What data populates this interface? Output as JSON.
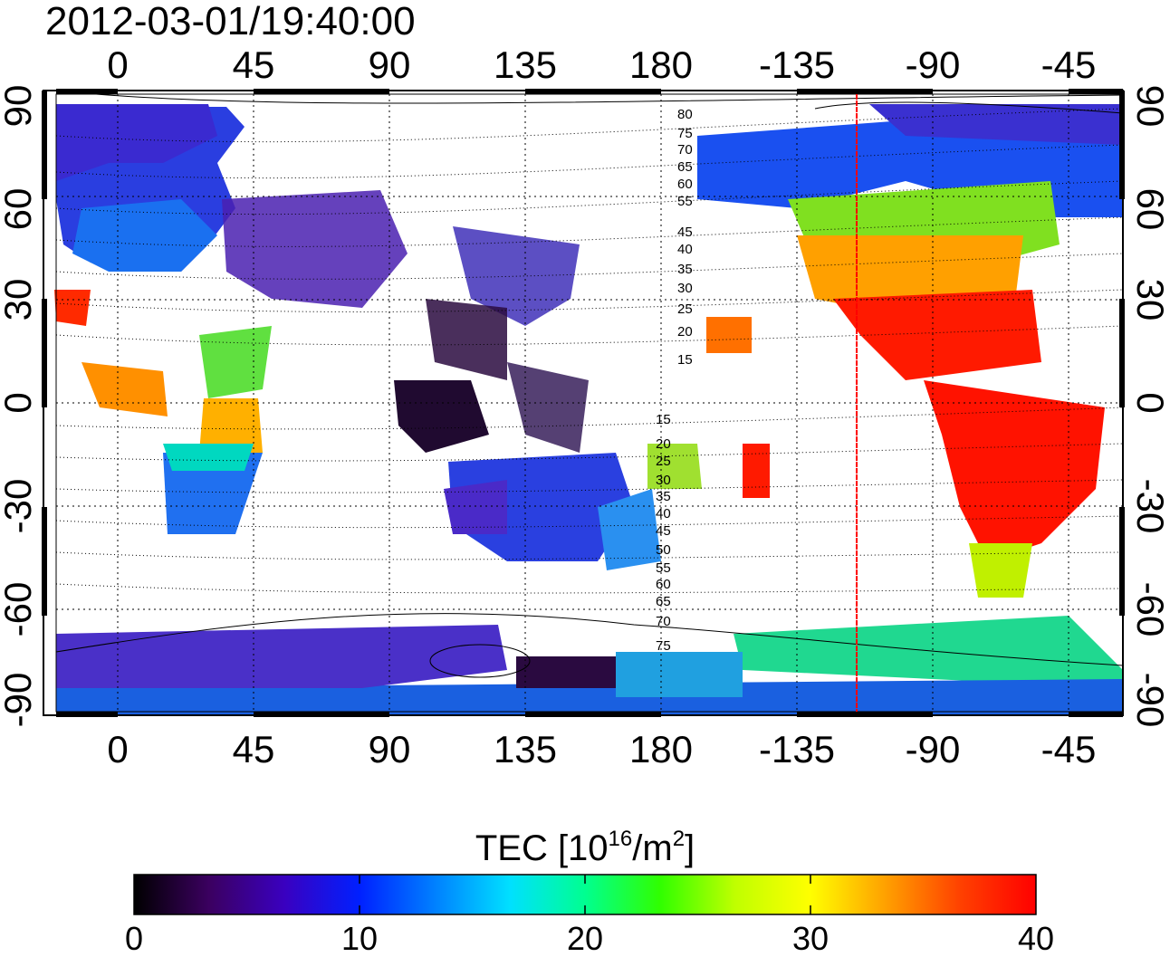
{
  "title": "2012-03-01/19:40:00",
  "map": {
    "lon_ticks": [
      "0",
      "45",
      "90",
      "135",
      "180",
      "-135",
      "-90",
      "-45"
    ],
    "lat_ticks": [
      "90",
      "60",
      "30",
      "0",
      "-30",
      "-60",
      "-90"
    ],
    "marked_longitude": -115,
    "marker_color": "#ff0000",
    "contour_labels_north": [
      "80",
      "75",
      "70",
      "65",
      "60",
      "55",
      "45",
      "40",
      "35",
      "30",
      "25",
      "20",
      "15"
    ],
    "contour_labels_south": [
      "15",
      "20",
      "25",
      "30",
      "35",
      "40",
      "45",
      "50",
      "55",
      "60",
      "65",
      "70",
      "75"
    ]
  },
  "colorbar": {
    "title_prefix": "TEC  [10",
    "title_exp1": "16",
    "title_mid": "/m",
    "title_exp2": "2",
    "title_suffix": "]",
    "ticks": [
      "0",
      "10",
      "20",
      "30",
      "40"
    ],
    "colors": [
      "#000000",
      "#3b0060",
      "#3a00c0",
      "#0020ff",
      "#0080ff",
      "#00e0ff",
      "#00ff90",
      "#30ff00",
      "#c0ff00",
      "#ffff00",
      "#ffa000",
      "#ff4000",
      "#ff0000"
    ]
  }
}
